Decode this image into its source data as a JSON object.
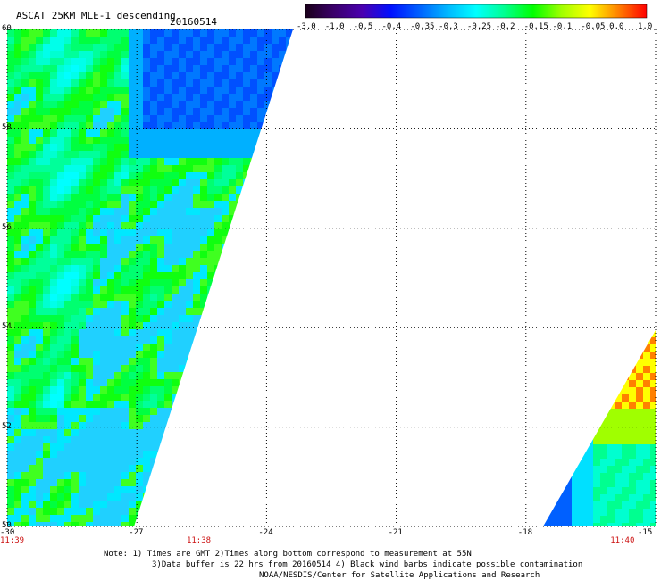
{
  "header": {
    "title": "ASCAT 25KM MLE-1 descending",
    "date": "20160514"
  },
  "colorbar": {
    "labels": [
      "-3.0",
      "-1.0",
      "-0.5",
      "-0.4",
      "-0.35",
      "-0.3",
      "-0.25",
      "-0.2",
      "-0.15",
      "-0.1",
      "-0.05",
      "0.0",
      "1.0"
    ],
    "colors": [
      "#1a001a",
      "#3a006a",
      "#4a00b0",
      "#0010ff",
      "#0060ff",
      "#00b8ff",
      "#00ffff",
      "#00ff90",
      "#00ff00",
      "#a0ff00",
      "#ffff00",
      "#ff8000",
      "#ff0000"
    ]
  },
  "map": {
    "lat_range": [
      50,
      60
    ],
    "lon_range": [
      -30,
      -15
    ],
    "lat_ticks": [
      "50",
      "52",
      "54",
      "56",
      "58",
      "60"
    ],
    "lon_ticks": [
      "-30",
      "-27",
      "-24",
      "-21",
      "-18",
      "-15"
    ],
    "times": [
      {
        "label": "11:39",
        "lon": -30
      },
      {
        "label": "11:38",
        "lon": -25.6
      },
      {
        "label": "11:40",
        "lon": -15.8
      }
    ]
  },
  "notes": [
    "Note: 1) Times are GMT 2)Times along bottom correspond to measurement at 55N",
    "3)Data buffer is 22 hrs from 20160514 4) Black wind barbs indicate possible contamination",
    "NOAA/NESDIS/Center for Satellite Applications and Research"
  ]
}
